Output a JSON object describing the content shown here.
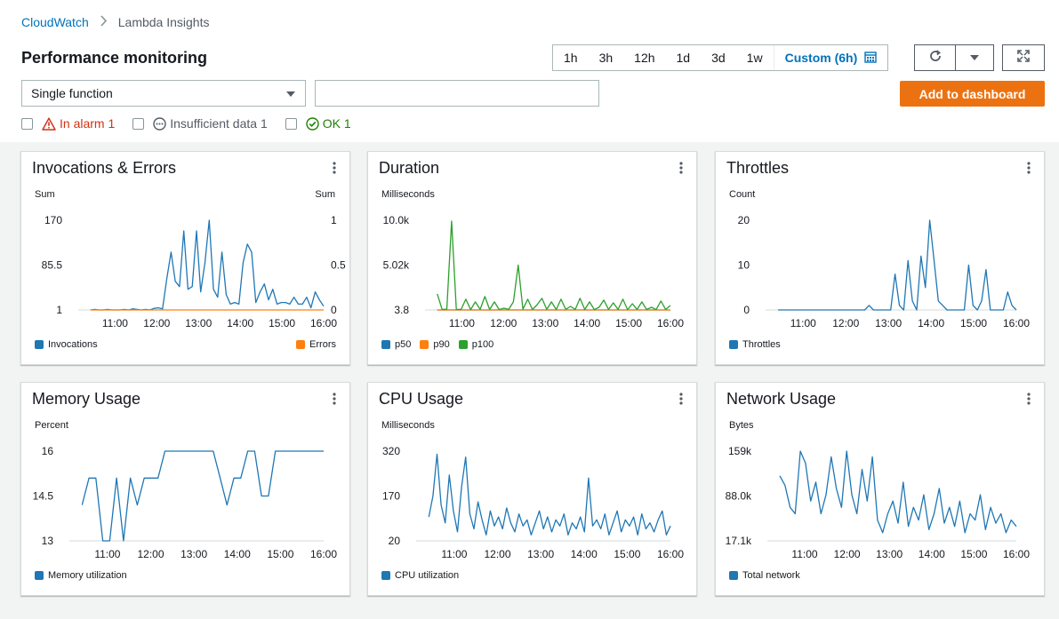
{
  "breadcrumb": {
    "parent": "CloudWatch",
    "current": "Lambda Insights"
  },
  "page_title": "Performance monitoring",
  "time_ranges": [
    "1h",
    "3h",
    "12h",
    "1d",
    "3d",
    "1w"
  ],
  "custom_range": "Custom (6h)",
  "mode_select": "Single function",
  "function_input": {
    "value": "",
    "placeholder": ""
  },
  "add_button": "Add to dashboard",
  "filters": {
    "alarm": "In alarm 1",
    "insufficient": "Insufficient data 1",
    "ok": "OK 1"
  },
  "colors": {
    "blue": "#1f77b4",
    "orange": "#ff7f0e",
    "green": "#2ca02c",
    "accent": "#ec7211",
    "link": "#0073bb"
  },
  "widgets": [
    {
      "title": "Invocations & Errors",
      "unit": "Sum",
      "unit_right": "Sum",
      "legend": [
        "Invocations",
        "Errors"
      ]
    },
    {
      "title": "Duration",
      "unit": "Milliseconds",
      "unit_right": "",
      "legend": [
        "p50",
        "p90",
        "p100"
      ]
    },
    {
      "title": "Throttles",
      "unit": "Count",
      "unit_right": "",
      "legend": [
        "Throttles"
      ]
    },
    {
      "title": "Memory Usage",
      "unit": "Percent",
      "unit_right": "",
      "legend": [
        "Memory utilization"
      ]
    },
    {
      "title": "CPU Usage",
      "unit": "Milliseconds",
      "unit_right": "",
      "legend": [
        "CPU utilization"
      ]
    },
    {
      "title": "Network Usage",
      "unit": "Bytes",
      "unit_right": "",
      "legend": [
        "Total network"
      ]
    }
  ],
  "chart_data": [
    {
      "type": "line",
      "title": "Invocations & Errors",
      "x_ticks": [
        "11:00",
        "12:00",
        "13:00",
        "14:00",
        "15:00",
        "16:00"
      ],
      "y_ticks": [
        "170",
        "85.5",
        "1"
      ],
      "y_right_ticks": [
        "1",
        "0.5",
        "0"
      ],
      "ylim": [
        1,
        170
      ],
      "ylim_right": [
        0,
        1
      ],
      "series": [
        {
          "name": "Invocations",
          "color": "#1f77b4",
          "axis": "left",
          "values": [
            1,
            2,
            1,
            1,
            2,
            1,
            1,
            1,
            2,
            1,
            3,
            2,
            1,
            2,
            1,
            4,
            5,
            3,
            60,
            110,
            55,
            45,
            150,
            40,
            45,
            150,
            35,
            90,
            170,
            40,
            25,
            110,
            30,
            12,
            15,
            12,
            90,
            125,
            110,
            15,
            35,
            50,
            20,
            40,
            12,
            15,
            15,
            12,
            25,
            12,
            12,
            25,
            5,
            35,
            20,
            8
          ]
        },
        {
          "name": "Errors",
          "color": "#ff7f0e",
          "axis": "right",
          "values": [
            0,
            0,
            0,
            0,
            0,
            0,
            0,
            0,
            0,
            0,
            0,
            0,
            0,
            0,
            0,
            0,
            0,
            0,
            0,
            0,
            0,
            0,
            0,
            0,
            0,
            0,
            0,
            0,
            0,
            0,
            0,
            0,
            0,
            0,
            0,
            0,
            0,
            0,
            0,
            0,
            0,
            0,
            0,
            0,
            0,
            0,
            0,
            0,
            0,
            0,
            0,
            0,
            0,
            0,
            0,
            0
          ]
        }
      ]
    },
    {
      "type": "line",
      "title": "Duration",
      "x_ticks": [
        "11:00",
        "12:00",
        "13:00",
        "14:00",
        "15:00",
        "16:00"
      ],
      "y_ticks": [
        "10.0k",
        "5.02k",
        "3.8"
      ],
      "ylim": [
        3.8,
        10000
      ],
      "series": [
        {
          "name": "p50",
          "color": "#1f77b4",
          "values": [
            5,
            4,
            6,
            4,
            5,
            5,
            4,
            6,
            5,
            4,
            5,
            4,
            5,
            6,
            4,
            5,
            4,
            5,
            6,
            4,
            5,
            4,
            6,
            5,
            4,
            5,
            4,
            5,
            6,
            4,
            5,
            4,
            5,
            4,
            5,
            6,
            4,
            5,
            4,
            5,
            4,
            6,
            5,
            4,
            5,
            4,
            5,
            4,
            6,
            5
          ]
        },
        {
          "name": "p90",
          "color": "#ff7f0e",
          "values": [
            8,
            6,
            9,
            7,
            8,
            6,
            7,
            9,
            8,
            7,
            6,
            8,
            7,
            9,
            6,
            8,
            7,
            6,
            8,
            9,
            7,
            6,
            8,
            7,
            9,
            6,
            8,
            7,
            6,
            8,
            7,
            9,
            6,
            8,
            7,
            6,
            8,
            7,
            9,
            6,
            8,
            7,
            6,
            8,
            7,
            9,
            6,
            8,
            7,
            6
          ]
        },
        {
          "name": "p100",
          "color": "#2ca02c",
          "values": [
            1800,
            60,
            80,
            9900,
            50,
            70,
            1200,
            40,
            900,
            60,
            1500,
            50,
            900,
            40,
            200,
            60,
            900,
            5000,
            80,
            1200,
            50,
            600,
            1300,
            60,
            900,
            40,
            1200,
            70,
            400,
            60,
            1300,
            50,
            900,
            40,
            300,
            1100,
            60,
            800,
            50,
            1200,
            40,
            700,
            60,
            900,
            50,
            300,
            40,
            1000,
            60,
            500
          ]
        }
      ]
    },
    {
      "type": "line",
      "title": "Throttles",
      "x_ticks": [
        "11:00",
        "12:00",
        "13:00",
        "14:00",
        "15:00",
        "16:00"
      ],
      "y_ticks": [
        "20",
        "10",
        "0"
      ],
      "ylim": [
        0,
        20
      ],
      "series": [
        {
          "name": "Throttles",
          "color": "#1f77b4",
          "values": [
            0,
            0,
            0,
            0,
            0,
            0,
            0,
            0,
            0,
            0,
            0,
            0,
            0,
            0,
            0,
            0,
            0,
            0,
            0,
            0,
            0,
            1,
            0,
            0,
            0,
            0,
            0,
            8,
            1,
            0,
            11,
            2,
            0,
            12,
            5,
            20,
            11,
            2,
            1,
            0,
            0,
            0,
            0,
            0,
            10,
            1,
            0,
            2,
            9,
            0,
            0,
            0,
            0,
            4,
            1,
            0
          ]
        }
      ]
    },
    {
      "type": "line",
      "title": "Memory Usage",
      "x_ticks": [
        "11:00",
        "12:00",
        "13:00",
        "14:00",
        "15:00",
        "16:00"
      ],
      "y_ticks": [
        "16",
        "14.5",
        "13"
      ],
      "ylim": [
        13,
        16
      ],
      "series": [
        {
          "name": "Memory utilization",
          "color": "#1f77b4",
          "values": [
            14.2,
            15.1,
            15.1,
            13,
            13,
            15.1,
            13,
            15.1,
            14.2,
            15.1,
            15.1,
            15.1,
            16,
            16,
            16,
            16,
            16,
            16,
            16,
            16,
            15.1,
            14.2,
            15.1,
            15.1,
            16,
            16,
            14.5,
            14.5,
            16,
            16,
            16,
            16,
            16,
            16,
            16,
            16
          ]
        }
      ]
    },
    {
      "type": "line",
      "title": "CPU Usage",
      "x_ticks": [
        "11:00",
        "12:00",
        "13:00",
        "14:00",
        "15:00",
        "16:00"
      ],
      "y_ticks": [
        "320",
        "170",
        "20"
      ],
      "ylim": [
        20,
        320
      ],
      "series": [
        {
          "name": "CPU utilization",
          "color": "#1f77b4",
          "values": [
            100,
            170,
            310,
            140,
            80,
            240,
            120,
            50,
            200,
            300,
            110,
            60,
            150,
            90,
            40,
            120,
            70,
            100,
            60,
            130,
            80,
            50,
            110,
            70,
            90,
            40,
            80,
            120,
            60,
            100,
            50,
            90,
            70,
            110,
            40,
            80,
            60,
            100,
            50,
            230,
            70,
            90,
            60,
            110,
            40,
            80,
            120,
            50,
            90,
            70,
            100,
            40,
            110,
            60,
            80,
            50,
            90,
            120,
            40,
            70
          ]
        }
      ]
    },
    {
      "type": "line",
      "title": "Network Usage",
      "x_ticks": [
        "11:00",
        "12:00",
        "13:00",
        "14:00",
        "15:00",
        "16:00"
      ],
      "y_ticks": [
        "159k",
        "88.0k",
        "17.1k"
      ],
      "ylim": [
        17100,
        159000
      ],
      "series": [
        {
          "name": "Total network",
          "color": "#1f77b4",
          "values": [
            120000,
            105000,
            70000,
            60000,
            159000,
            140000,
            80000,
            110000,
            60000,
            90000,
            150000,
            100000,
            70000,
            159000,
            90000,
            60000,
            130000,
            80000,
            150000,
            50000,
            30000,
            60000,
            80000,
            45000,
            110000,
            40000,
            70000,
            50000,
            90000,
            35000,
            60000,
            100000,
            45000,
            70000,
            40000,
            80000,
            30000,
            60000,
            50000,
            90000,
            35000,
            70000,
            45000,
            60000,
            30000,
            50000,
            40000
          ]
        }
      ]
    }
  ]
}
